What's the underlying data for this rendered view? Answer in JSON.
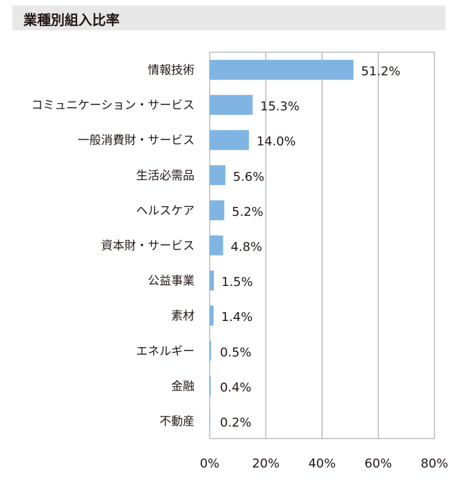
{
  "title": "業種別組入比率",
  "chart_data": {
    "type": "bar",
    "orientation": "horizontal",
    "title": "業種別組入比率",
    "xlabel": "",
    "ylabel": "",
    "categories": [
      "情報技術",
      "コミュニケーション・サービス",
      "一般消費財・サービス",
      "生活必需品",
      "ヘルスケア",
      "資本財・サービス",
      "公益事業",
      "素材",
      "エネルギー",
      "金融",
      "不動産"
    ],
    "values": [
      51.2,
      15.3,
      14.0,
      5.6,
      5.2,
      4.8,
      1.5,
      1.4,
      0.5,
      0.4,
      0.2
    ],
    "value_labels": [
      "51.2%",
      "15.3%",
      "14.0%",
      "5.6%",
      "5.2%",
      "4.8%",
      "1.5%",
      "1.4%",
      "0.5%",
      "0.4%",
      "0.2%"
    ],
    "xlim": [
      0,
      80
    ],
    "xticks": [
      0,
      20,
      40,
      60,
      80
    ],
    "xtick_labels": [
      "0%",
      "20%",
      "40%",
      "60%",
      "80%"
    ],
    "grid": true,
    "bar_color": "#80b5e3",
    "grid_color": "#9a9a9a"
  }
}
